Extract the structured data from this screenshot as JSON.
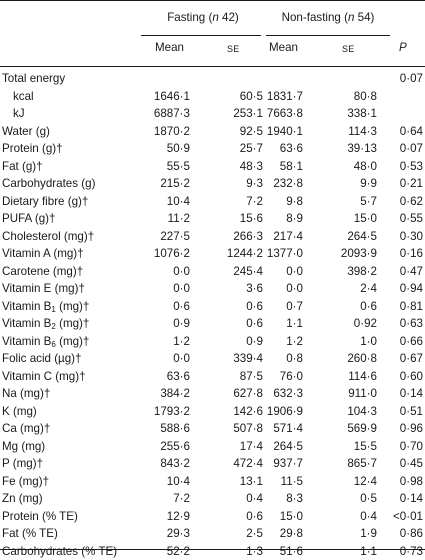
{
  "header": {
    "group_fasting": "Fasting (n 42)",
    "group_nonfasting": "Non-fasting (n 54)",
    "mean": "Mean",
    "se": "SE",
    "p": "P"
  },
  "rows": [
    {
      "label": "Total energy",
      "indent": false,
      "fm": "",
      "fse": "",
      "nm": "",
      "nse": "",
      "p": "0·07"
    },
    {
      "label": "kcal",
      "indent": true,
      "fm": "1646·1",
      "fse": "60·5",
      "nm": "1831·7",
      "nse": "80·8",
      "p": ""
    },
    {
      "label": "kJ",
      "indent": true,
      "fm": "6887·3",
      "fse": "253·1",
      "nm": "7663·8",
      "nse": "338·1",
      "p": ""
    },
    {
      "label": "Water (g)",
      "fm": "1870·2",
      "fse": "92·5",
      "nm": "1940·1",
      "nse": "114·3",
      "p": "0·64"
    },
    {
      "label": "Protein (g)†",
      "fm": "50·9",
      "fse": "25·7",
      "nm": "63·6",
      "nse": "39·13",
      "p": "0·07"
    },
    {
      "label": "Fat (g)†",
      "fm": "55·5",
      "fse": "48·3",
      "nm": "58·1",
      "nse": "48·0",
      "p": "0·53"
    },
    {
      "label": "Carbohydrates (g)",
      "fm": "215·2",
      "fse": "9·3",
      "nm": "232·8",
      "nse": "9·9",
      "p": "0·21"
    },
    {
      "label": "Dietary fibre (g)†",
      "fm": "10·4",
      "fse": "7·2",
      "nm": "9·8",
      "nse": "5·7",
      "p": "0·62"
    },
    {
      "label": "PUFA (g)†",
      "fm": "11·2",
      "fse": "15·6",
      "nm": "8·9",
      "nse": "15·0",
      "p": "0·55"
    },
    {
      "label": "Cholesterol (mg)†",
      "fm": "227·5",
      "fse": "266·3",
      "nm": "217·4",
      "nse": "264·5",
      "p": "0·30"
    },
    {
      "label": "Vitamin A (mg)†",
      "fm": "1076·2",
      "fse": "1244·2",
      "nm": "1377·0",
      "nse": "2093·9",
      "p": "0·16"
    },
    {
      "label": "Carotene (mg)†",
      "fm": "0·0",
      "fse": "245·4",
      "nm": "0·0",
      "nse": "398·2",
      "p": "0·47"
    },
    {
      "label": "Vitamin E (mg)†",
      "fm": "0·0",
      "fse": "3·6",
      "nm": "0·0",
      "nse": "2·4",
      "p": "0·94"
    },
    {
      "label": "Vitamin B",
      "sub": "1",
      "after": " (mg)†",
      "fm": "0·6",
      "fse": "0·6",
      "nm": "0·7",
      "nse": "0·6",
      "p": "0·81"
    },
    {
      "label": "Vitamin B",
      "sub": "2",
      "after": " (mg)†",
      "fm": "0·9",
      "fse": "0·6",
      "nm": "1·1",
      "nse": "0·92",
      "p": "0·63"
    },
    {
      "label": "Vitamin B",
      "sub": "6",
      "after": " (mg)†",
      "fm": "1·2",
      "fse": "0·9",
      "nm": "1·2",
      "nse": "1·0",
      "p": "0·66"
    },
    {
      "label": "Folic acid (µg)†",
      "fm": "0·0",
      "fse": "339·4",
      "nm": "0·8",
      "nse": "260·8",
      "p": "0·67"
    },
    {
      "label": "Vitamin C (mg)†",
      "fm": "63·6",
      "fse": "87·5",
      "nm": "76·0",
      "nse": "114·6",
      "p": "0·60"
    },
    {
      "label": "Na (mg)†",
      "fm": "384·2",
      "fse": "627·8",
      "nm": "632·3",
      "nse": "911·0",
      "p": "0·14"
    },
    {
      "label": "K (mg)",
      "fm": "1793·2",
      "fse": "142·6",
      "nm": "1906·9",
      "nse": "104·3",
      "p": "0·51"
    },
    {
      "label": "Ca (mg)†",
      "fm": "588·6",
      "fse": "507·8",
      "nm": "571·4",
      "nse": "569·9",
      "p": "0·96"
    },
    {
      "label": "Mg (mg)",
      "fm": "255·6",
      "fse": "17·4",
      "nm": "264·5",
      "nse": "15·5",
      "p": "0·70"
    },
    {
      "label": "P (mg)†",
      "fm": "843·2",
      "fse": "472·4",
      "nm": "937·7",
      "nse": "865·7",
      "p": "0·45"
    },
    {
      "label": "Fe (mg)†",
      "fm": "10·4",
      "fse": "13·1",
      "nm": "11·5",
      "nse": "12·4",
      "p": "0·98"
    },
    {
      "label": "Zn (mg)",
      "fm": "7·2",
      "fse": "0·4",
      "nm": "8·3",
      "nse": "0·5",
      "p": "0·14"
    },
    {
      "label": "Protein (% TE)",
      "fm": "12·9",
      "fse": "0·6",
      "nm": "15·0",
      "nse": "0·4",
      "p": "<0·01"
    },
    {
      "label": "Fat (% TE)",
      "fm": "29·3",
      "fse": "2·5",
      "nm": "29·8",
      "nse": "1·9",
      "p": "0·86"
    },
    {
      "label": "Carbohydrates (% TE)",
      "fm": "52·2",
      "fse": "1·3",
      "nm": "51·6",
      "nse": "1·1",
      "p": "0·73"
    }
  ]
}
